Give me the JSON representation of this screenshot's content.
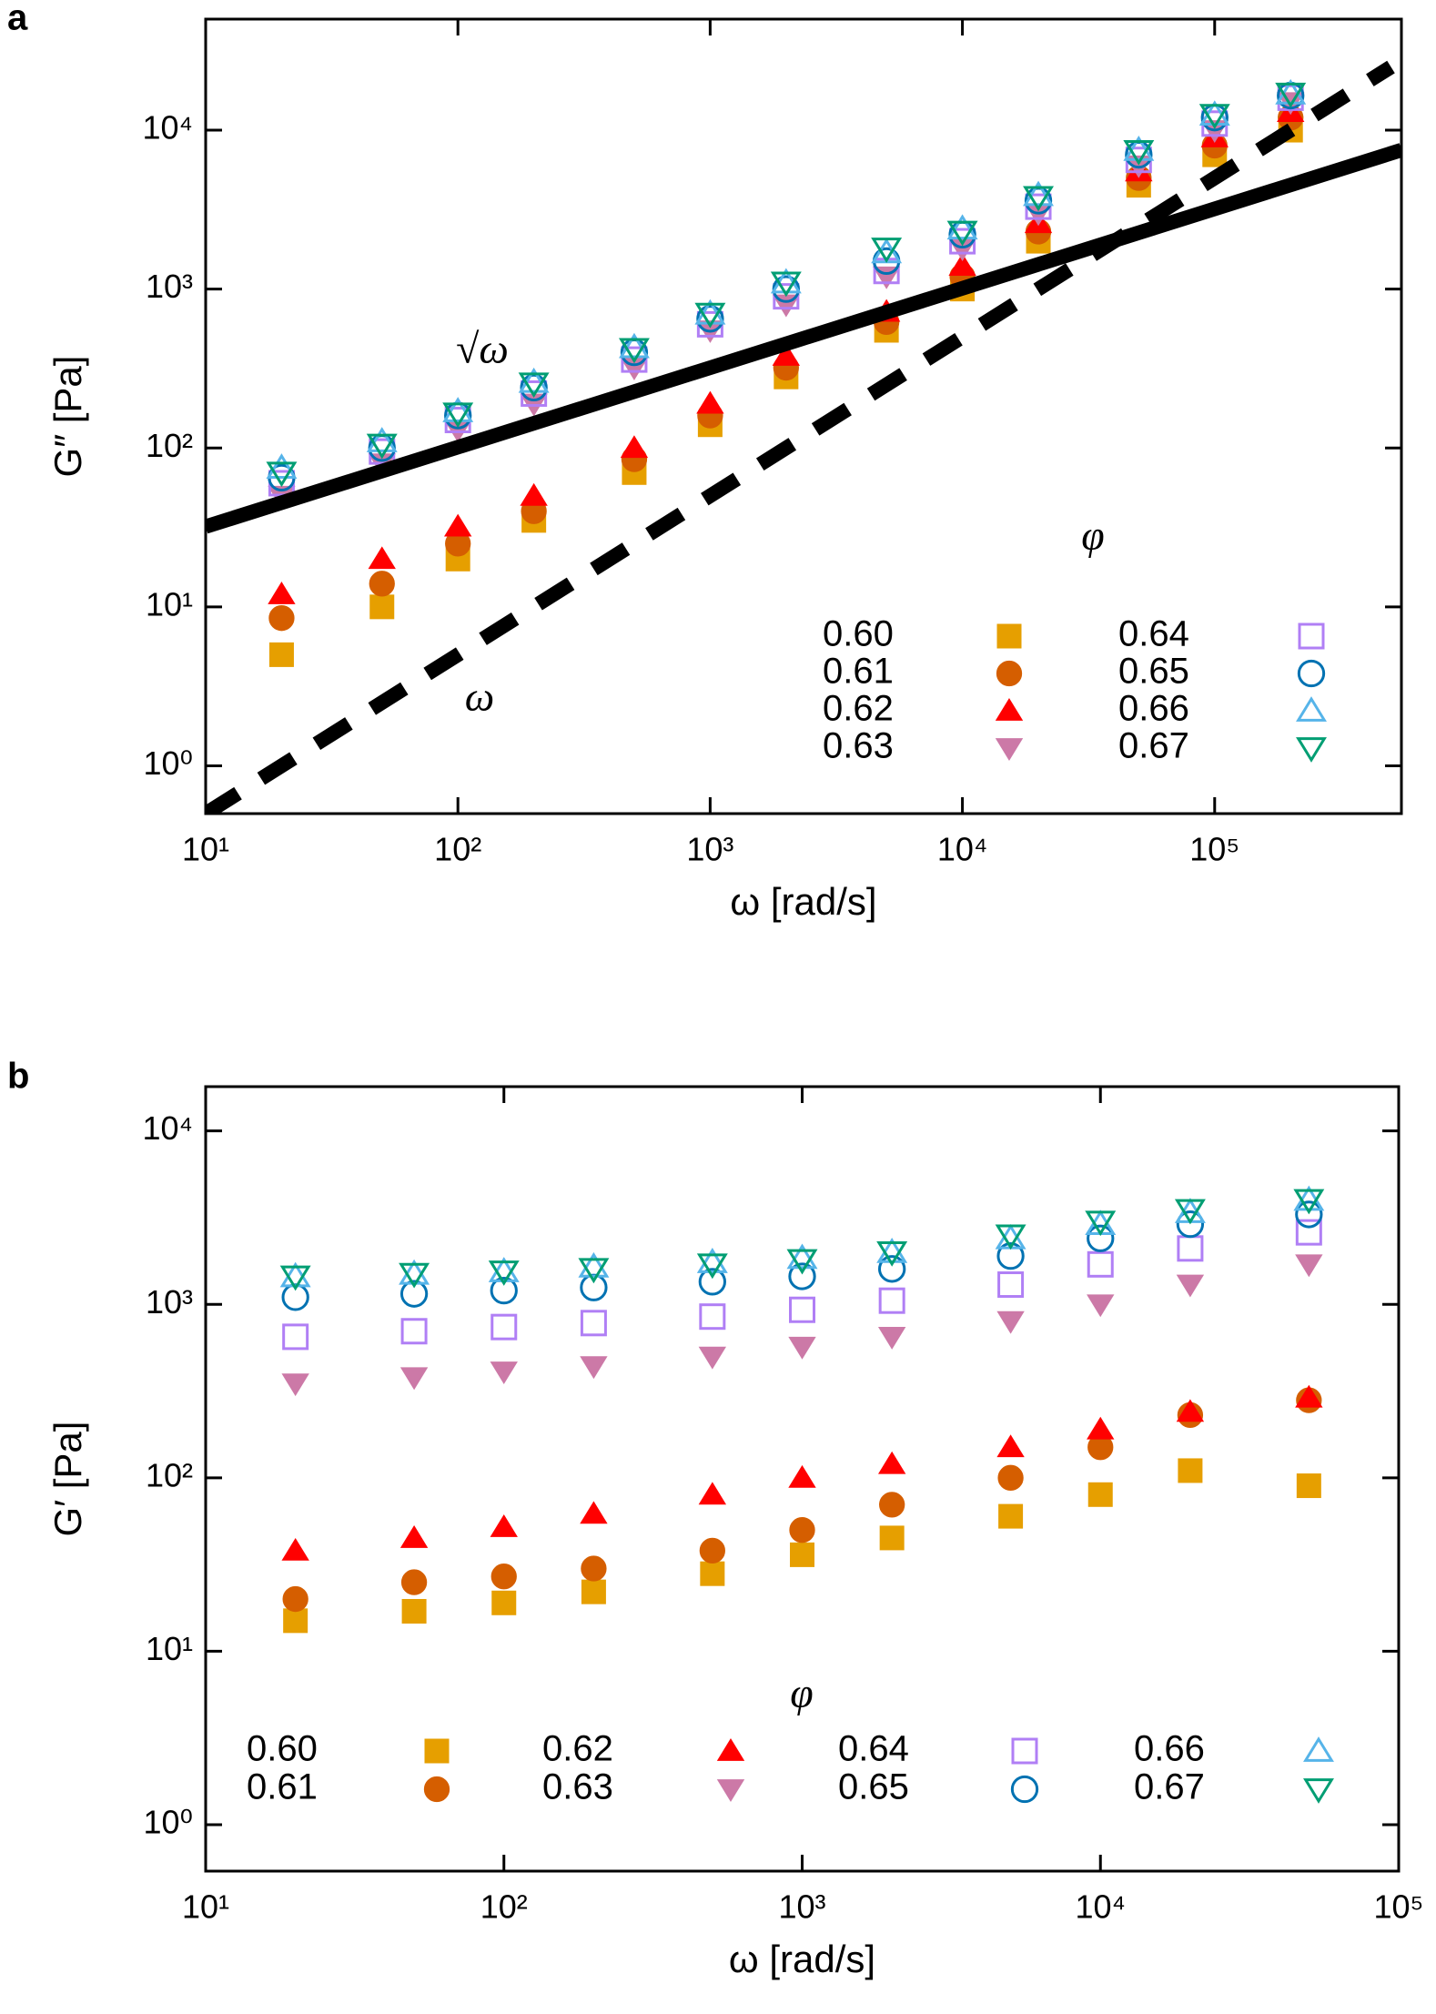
{
  "chart_data": [
    {
      "type": "scatter",
      "panel_label": "a",
      "x_label": "ω [rad/s]",
      "y_label": "G″ [Pa]",
      "log_x": true,
      "log_y": true,
      "grid": false,
      "xlim": [
        10,
        550000
      ],
      "ylim": [
        0.5,
        50000
      ],
      "xticks": [
        {
          "value": 10,
          "label": "10¹"
        },
        {
          "value": 100,
          "label": "10²"
        },
        {
          "value": 1000,
          "label": "10³"
        },
        {
          "value": 10000,
          "label": "10⁴"
        },
        {
          "value": 100000,
          "label": "10⁵"
        }
      ],
      "yticks": [
        {
          "value": 1,
          "label": "10⁰"
        },
        {
          "value": 10,
          "label": "10¹"
        },
        {
          "value": 100,
          "label": "10²"
        },
        {
          "value": 1000,
          "label": "10³"
        },
        {
          "value": 10000,
          "label": "10⁴"
        }
      ],
      "legend_title": "φ",
      "x": [
        20,
        50,
        100,
        200,
        500,
        1000,
        2000,
        5000,
        10000,
        20000,
        50000,
        100000,
        200000
      ],
      "series": [
        {
          "name": "0.60",
          "color": "#E69F00",
          "marker": "square",
          "filled": true,
          "values": [
            5,
            10,
            20,
            35,
            70,
            140,
            280,
            550,
            1000,
            2000,
            4500,
            7000,
            10000
          ]
        },
        {
          "name": "0.61",
          "color": "#D55E00",
          "marker": "circle",
          "filled": true,
          "values": [
            8.5,
            14,
            25,
            40,
            85,
            160,
            320,
            620,
            1200,
            2300,
            5000,
            8000,
            12000
          ]
        },
        {
          "name": "0.62",
          "color": "#FF0000",
          "marker": "triangle-up",
          "filled": true,
          "values": [
            12,
            20,
            32,
            50,
            100,
            190,
            380,
            720,
            1400,
            2600,
            5500,
            9000,
            13000
          ]
        },
        {
          "name": "0.63",
          "color": "#CC79A7",
          "marker": "triangle-down",
          "filled": true,
          "values": [
            50,
            80,
            130,
            190,
            320,
            550,
            800,
            1200,
            1800,
            3000,
            6000,
            10000,
            15000
          ]
        },
        {
          "name": "0.64",
          "color": "#B07FF5",
          "marker": "square",
          "filled": false,
          "values": [
            60,
            95,
            150,
            220,
            360,
            600,
            900,
            1300,
            2000,
            3300,
            6500,
            11000,
            16000
          ]
        },
        {
          "name": "0.65",
          "color": "#0072B2",
          "marker": "circle",
          "filled": false,
          "values": [
            65,
            100,
            160,
            240,
            400,
            650,
            1000,
            1500,
            2200,
            3600,
            7000,
            12000,
            16500
          ]
        },
        {
          "name": "0.66",
          "color": "#56B4E9",
          "marker": "triangle-up",
          "filled": false,
          "values": [
            75,
            110,
            170,
            260,
            430,
            700,
            1100,
            1700,
            2400,
            3900,
            7500,
            12500,
            17000
          ]
        },
        {
          "name": "0.67",
          "color": "#009E73",
          "marker": "triangle-down",
          "filled": false,
          "values": [
            70,
            105,
            165,
            255,
            420,
            700,
            1100,
            1800,
            2300,
            3800,
            7400,
            12500,
            17000
          ]
        }
      ],
      "reference_lines": [
        {
          "label": "√ω",
          "color": "#000000",
          "dashed": false,
          "x": [
            10,
            550000
          ],
          "values": [
            32,
            7500
          ]
        },
        {
          "label": "ω",
          "color": "#000000",
          "dashed": true,
          "x": [
            10,
            500000
          ],
          "values": [
            0.5,
            25000
          ]
        }
      ]
    },
    {
      "type": "scatter",
      "panel_label": "b",
      "x_label": "ω [rad/s]",
      "y_label": "G′ [Pa]",
      "log_x": true,
      "log_y": true,
      "grid": false,
      "xlim": [
        10,
        100000
      ],
      "ylim": [
        0.54,
        18000
      ],
      "xticks": [
        {
          "value": 10,
          "label": "10¹"
        },
        {
          "value": 100,
          "label": "10²"
        },
        {
          "value": 1000,
          "label": "10³"
        },
        {
          "value": 10000,
          "label": "10⁴"
        },
        {
          "value": 100000,
          "label": "10⁵"
        }
      ],
      "yticks": [
        {
          "value": 1,
          "label": "10⁰"
        },
        {
          "value": 10,
          "label": "10¹"
        },
        {
          "value": 100,
          "label": "10²"
        },
        {
          "value": 1000,
          "label": "10³"
        },
        {
          "value": 10000,
          "label": "10⁴"
        }
      ],
      "legend_title": "φ",
      "x": [
        20,
        50,
        100,
        200,
        500,
        1000,
        2000,
        5000,
        10000,
        20000,
        50000
      ],
      "series": [
        {
          "name": "0.60",
          "color": "#E69F00",
          "marker": "square",
          "filled": true,
          "values": [
            15,
            17,
            19,
            22,
            28,
            36,
            45,
            60,
            80,
            110,
            90
          ]
        },
        {
          "name": "0.61",
          "color": "#D55E00",
          "marker": "circle",
          "filled": true,
          "values": [
            20,
            25,
            27,
            30,
            38,
            50,
            70,
            100,
            150,
            230,
            280
          ]
        },
        {
          "name": "0.62",
          "color": "#FF0000",
          "marker": "triangle-up",
          "filled": true,
          "values": [
            38,
            45,
            52,
            62,
            80,
            100,
            120,
            150,
            190,
            240,
            290
          ]
        },
        {
          "name": "0.63",
          "color": "#CC79A7",
          "marker": "triangle-down",
          "filled": true,
          "values": [
            350,
            380,
            410,
            440,
            500,
            570,
            650,
            800,
            1000,
            1300,
            1700
          ]
        },
        {
          "name": "0.64",
          "color": "#B07FF5",
          "marker": "square",
          "filled": false,
          "values": [
            650,
            700,
            740,
            780,
            850,
            930,
            1050,
            1300,
            1700,
            2100,
            2600
          ]
        },
        {
          "name": "0.65",
          "color": "#0072B2",
          "marker": "circle",
          "filled": false,
          "values": [
            1100,
            1150,
            1200,
            1250,
            1350,
            1450,
            1600,
            1900,
            2400,
            2900,
            3300
          ]
        },
        {
          "name": "0.66",
          "color": "#56B4E9",
          "marker": "triangle-up",
          "filled": false,
          "values": [
            1450,
            1500,
            1550,
            1650,
            1750,
            1850,
            2000,
            2400,
            2900,
            3400,
            4000
          ]
        },
        {
          "name": "0.67",
          "color": "#009E73",
          "marker": "triangle-down",
          "filled": false,
          "values": [
            1450,
            1500,
            1550,
            1600,
            1700,
            1800,
            2000,
            2500,
            3000,
            3500,
            4000
          ]
        }
      ]
    }
  ]
}
